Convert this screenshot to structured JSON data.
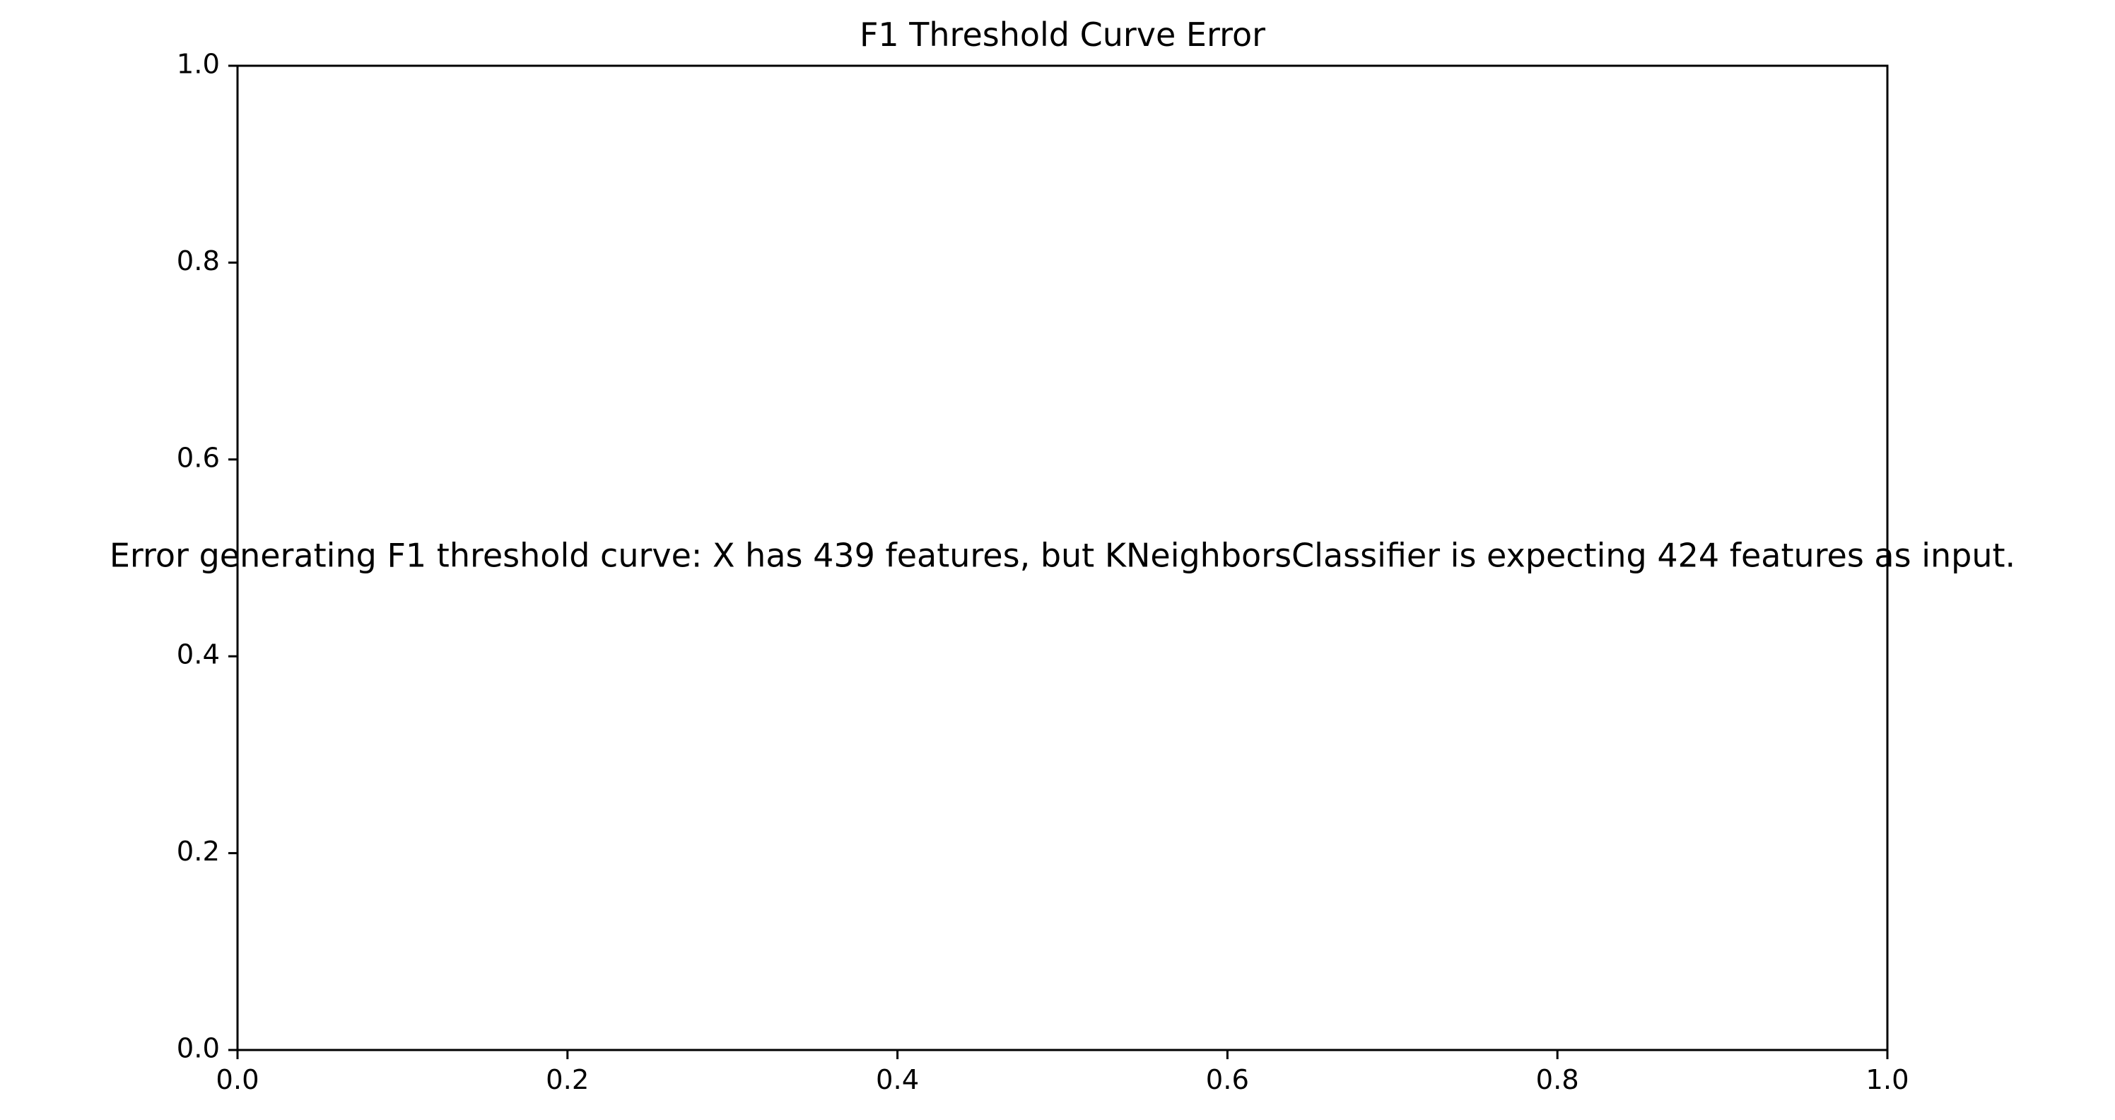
{
  "chart_data": {
    "type": "line",
    "title": "F1 Threshold Curve Error",
    "xlabel": "",
    "ylabel": "",
    "xlim": [
      0.0,
      1.0
    ],
    "ylim": [
      0.0,
      1.0
    ],
    "x_ticks": [
      "0.0",
      "0.2",
      "0.4",
      "0.6",
      "0.8",
      "1.0"
    ],
    "y_ticks": [
      "0.0",
      "0.2",
      "0.4",
      "0.6",
      "0.8",
      "1.0"
    ],
    "grid": false,
    "series": [],
    "annotations": [
      {
        "text": "Error generating F1 threshold curve: X has 439 features, but KNeighborsClassifier is expecting 424 features as input.",
        "x": 0.5,
        "y": 0.5,
        "coordinate_space": "axes"
      }
    ]
  },
  "colors": {
    "axis": "#000000",
    "background": "#ffffff",
    "text": "#000000"
  }
}
